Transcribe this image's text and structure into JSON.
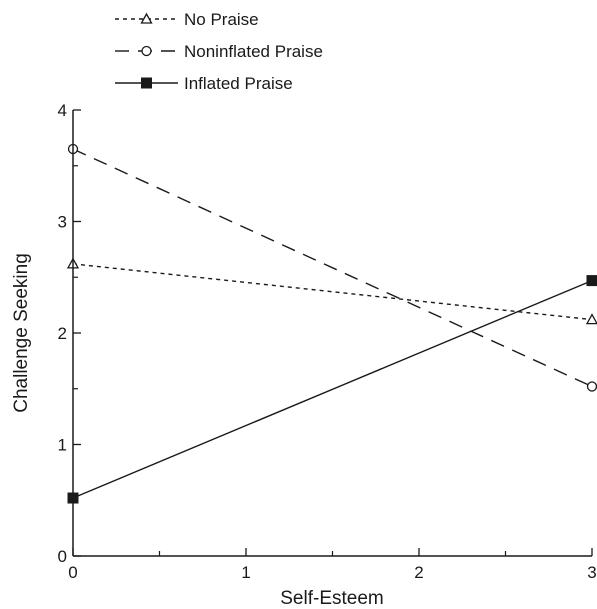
{
  "chart_data": {
    "type": "line",
    "xlabel": "Self-Esteem",
    "ylabel": "Challenge Seeking",
    "xlim": [
      0,
      3
    ],
    "ylim": [
      0,
      4
    ],
    "xticks": [
      "0",
      "1",
      "2",
      "3"
    ],
    "yticks": [
      "0",
      "1",
      "2",
      "3",
      "4"
    ],
    "grid": false,
    "legend_position": "top-left",
    "series": [
      {
        "name": "No Praise",
        "x": [
          0,
          3
        ],
        "y": [
          2.62,
          2.12
        ],
        "line_style": "dotted",
        "marker": "triangle-open"
      },
      {
        "name": "Noninflated Praise",
        "x": [
          0,
          3
        ],
        "y": [
          3.65,
          1.52
        ],
        "line_style": "dashed",
        "marker": "circle-open"
      },
      {
        "name": "Inflated Praise",
        "x": [
          0,
          3
        ],
        "y": [
          0.52,
          2.47
        ],
        "line_style": "solid",
        "marker": "square-filled"
      }
    ]
  }
}
